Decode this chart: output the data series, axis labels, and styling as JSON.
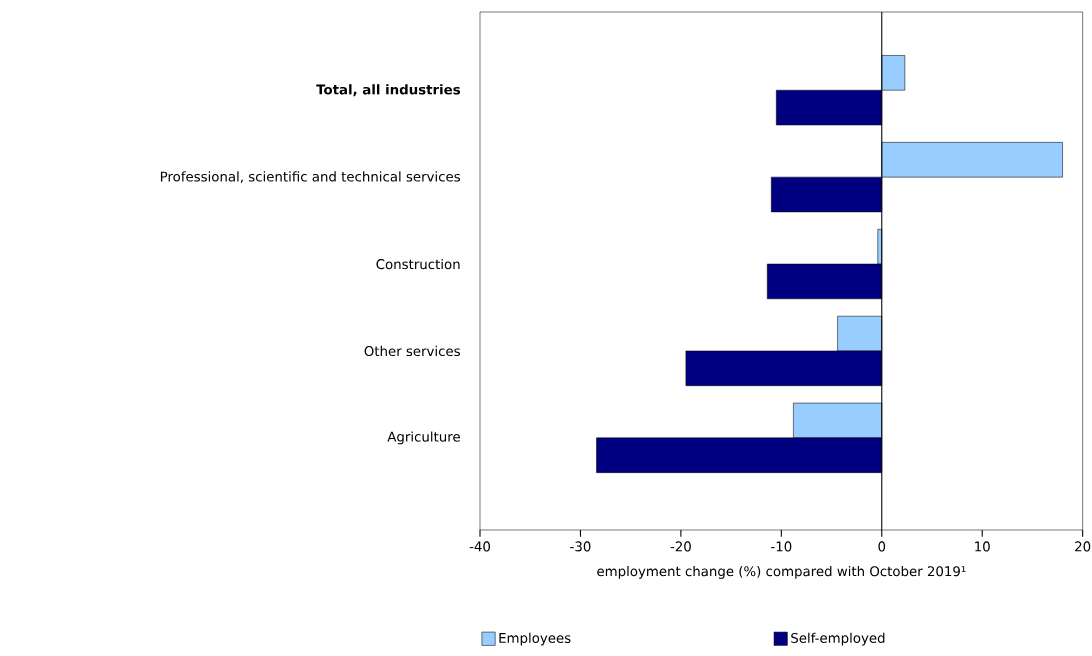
{
  "chart_data": {
    "type": "bar",
    "orientation": "horizontal",
    "categories": [
      "Total, all industries",
      "Professional, scientific and technical services",
      "Construction",
      "Other services",
      "Agriculture"
    ],
    "series": [
      {
        "name": "Employees",
        "color": "#99ccff",
        "values": [
          2.3,
          18.0,
          -0.4,
          -4.4,
          -8.8
        ]
      },
      {
        "name": "Self-employed",
        "color": "#000080",
        "values": [
          -10.5,
          -11.0,
          -11.4,
          -19.5,
          -28.4
        ]
      }
    ],
    "xlabel": "employment change (%) compared with October 2019¹",
    "xlim": [
      -40,
      20
    ],
    "xticks": [
      -40,
      -30,
      -20,
      -10,
      0,
      10,
      20
    ],
    "ref_lines": [
      {
        "axis": "x",
        "value": 0,
        "color": "#000000"
      }
    ],
    "grid": false,
    "legend": "bottom"
  }
}
